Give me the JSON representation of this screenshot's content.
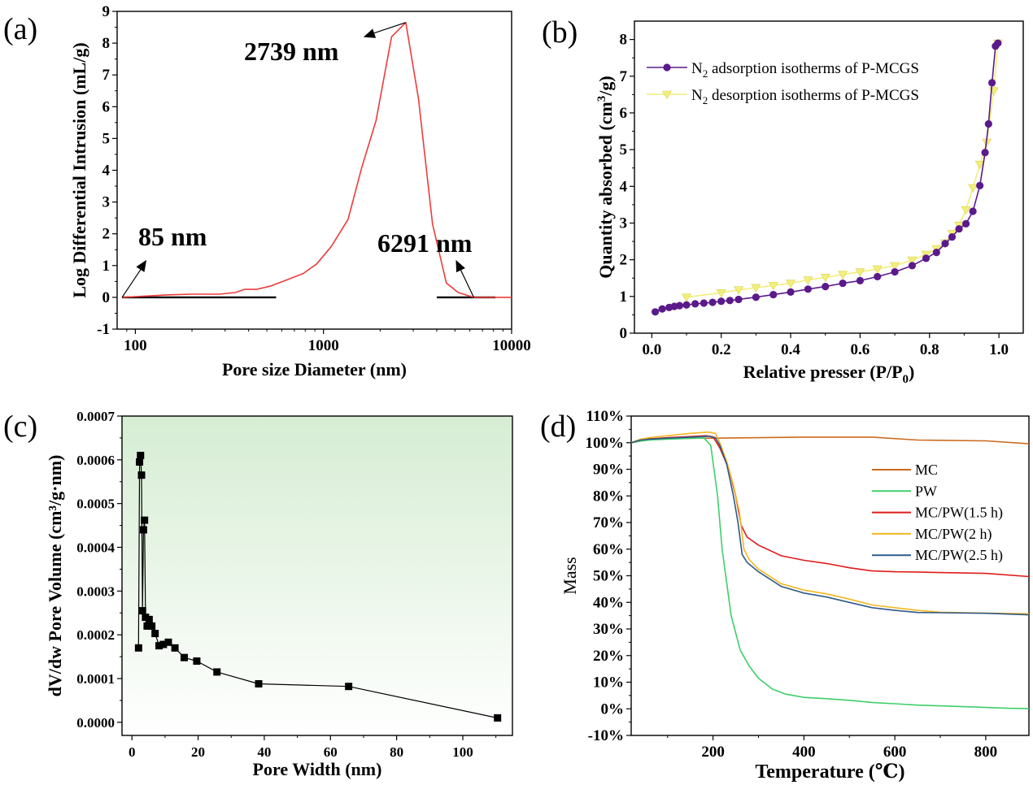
{
  "colors": {
    "a_line": "#ee3b3b",
    "b_ads": "#5b1a8a",
    "b_des": "#f2ee7a",
    "c_bg_top": "#d6edd3",
    "c_bg_bottom": "#ffffff",
    "d_mc": "#cc6a1e",
    "d_pw": "#3ecf6a",
    "d_mcpw15": "#e01b1b",
    "d_mcpw2": "#f5b621",
    "d_mcpw25": "#2f5a8a"
  },
  "chart_data": [
    {
      "id": "a",
      "panel_label": "(a)",
      "type": "line",
      "title": "",
      "xlabel": "Pore size Diameter (nm)",
      "ylabel": "Log Differential Intrusion (mL/g)",
      "xscale": "log",
      "xlim": [
        80,
        10000
      ],
      "ylim": [
        -1,
        9
      ],
      "xticks": [
        100,
        1000,
        10000
      ],
      "xtick_labels": [
        "100",
        "1000",
        "10000"
      ],
      "yticks": [
        -1,
        0,
        1,
        2,
        3,
        4,
        5,
        6,
        7,
        8,
        9
      ],
      "ytick_labels": [
        "-1",
        "0",
        "1",
        "2",
        "3",
        "4",
        "5",
        "6",
        "7",
        "8",
        "9"
      ],
      "series": [
        {
          "name": "Log Differential Intrusion",
          "x": [
            85,
            100,
            150,
            200,
            280,
            340,
            380,
            440,
            520,
            640,
            780,
            920,
            1100,
            1350,
            1600,
            1900,
            2300,
            2739,
            3200,
            3800,
            4500,
            5200,
            6291,
            8000,
            10000
          ],
          "y": [
            0.0,
            0.02,
            0.08,
            0.1,
            0.1,
            0.15,
            0.25,
            0.25,
            0.35,
            0.55,
            0.75,
            1.05,
            1.6,
            2.45,
            4.1,
            5.55,
            8.2,
            8.65,
            6.25,
            2.3,
            0.45,
            0.15,
            0.0,
            0.0,
            0.0
          ]
        }
      ],
      "baselines": [
        {
          "x": [
            85,
            560
          ],
          "y": 0
        },
        {
          "x": [
            4000,
            8200
          ],
          "y": 0
        }
      ],
      "annotations": [
        {
          "text": "85 nm",
          "x": 85,
          "y": 0
        },
        {
          "text": "2739 nm",
          "x": 2739,
          "y": 8.65
        },
        {
          "text": "6291 nm",
          "x": 6291,
          "y": 0
        }
      ]
    },
    {
      "id": "b",
      "panel_label": "(b)",
      "type": "line",
      "title": "",
      "xlabel": "Relative presser (P/P",
      "xlabel_sub": "0",
      "xlabel_end": ")",
      "ylabel": "Quantity absorbed (cm",
      "ylabel_sup": "3",
      "ylabel_end": "/g)",
      "xlim": [
        -0.05,
        1.07
      ],
      "ylim": [
        0,
        8.5
      ],
      "xticks": [
        0.0,
        0.2,
        0.4,
        0.6,
        0.8,
        1.0
      ],
      "xtick_labels": [
        "0.0",
        "0.2",
        "0.4",
        "0.6",
        "0.8",
        "1.0"
      ],
      "yticks": [
        0,
        1,
        2,
        3,
        4,
        5,
        6,
        7,
        8
      ],
      "ytick_labels": [
        "0",
        "1",
        "2",
        "3",
        "4",
        "5",
        "6",
        "7",
        "8"
      ],
      "legend_position": "top-left",
      "series": [
        {
          "name": "N",
          "name_sub": "2",
          "name_end": " adsorption isotherms of P-MCGS",
          "marker": "circle",
          "x": [
            0.01,
            0.03,
            0.05,
            0.065,
            0.08,
            0.1,
            0.125,
            0.15,
            0.175,
            0.2,
            0.225,
            0.25,
            0.3,
            0.35,
            0.4,
            0.45,
            0.5,
            0.55,
            0.6,
            0.65,
            0.7,
            0.75,
            0.79,
            0.82,
            0.845,
            0.865,
            0.885,
            0.905,
            0.925,
            0.945,
            0.96,
            0.97,
            0.98,
            0.99,
            0.997
          ],
          "y": [
            0.58,
            0.66,
            0.7,
            0.73,
            0.75,
            0.77,
            0.8,
            0.82,
            0.84,
            0.87,
            0.89,
            0.92,
            0.98,
            1.05,
            1.12,
            1.2,
            1.27,
            1.36,
            1.43,
            1.54,
            1.67,
            1.84,
            2.04,
            2.2,
            2.44,
            2.62,
            2.84,
            2.98,
            3.32,
            4.02,
            4.92,
            5.7,
            6.82,
            7.82,
            7.9
          ]
        },
        {
          "name": "N",
          "name_sub": "2",
          "name_end": " desorption isotherms of P-MCGS",
          "marker": "triangle-down",
          "x": [
            0.1,
            0.2,
            0.25,
            0.3,
            0.35,
            0.4,
            0.45,
            0.5,
            0.55,
            0.6,
            0.65,
            0.7,
            0.75,
            0.79,
            0.82,
            0.845,
            0.865,
            0.885,
            0.905,
            0.925,
            0.945,
            0.965,
            0.985,
            0.997
          ],
          "y": [
            0.98,
            1.1,
            1.18,
            1.24,
            1.3,
            1.36,
            1.45,
            1.52,
            1.6,
            1.67,
            1.75,
            1.84,
            1.99,
            2.15,
            2.3,
            2.46,
            2.72,
            2.94,
            3.36,
            3.96,
            4.6,
            5.2,
            6.6,
            7.9
          ]
        }
      ]
    },
    {
      "id": "c",
      "panel_label": "(c)",
      "type": "line",
      "title": "",
      "xlabel": "Pore Width (nm)",
      "ylabel": "dV/dw Pore Volume (cm³/g·nm)",
      "xlim": [
        -3,
        115
      ],
      "ylim": [
        -3e-05,
        0.0007
      ],
      "xticks": [
        0,
        20,
        40,
        60,
        80,
        100
      ],
      "xtick_labels": [
        "0",
        "20",
        "40",
        "60",
        "80",
        "100"
      ],
      "yticks": [
        0.0,
        0.0001,
        0.0002,
        0.0003,
        0.0004,
        0.0005,
        0.0006,
        0.0007
      ],
      "ytick_labels": [
        "0.0000",
        "0.0001",
        "0.0002",
        "0.0003",
        "0.0004",
        "0.0005",
        "0.0006",
        "0.0007"
      ],
      "background": "gradient",
      "series": [
        {
          "name": "dV/dw Pore Volume",
          "marker": "square",
          "x": [
            2.0,
            2.3,
            2.6,
            2.9,
            3.2,
            3.5,
            3.8,
            4.1,
            4.6,
            5.2,
            6.0,
            7.0,
            8.2,
            9.5,
            11.0,
            13.0,
            15.8,
            19.6,
            25.7,
            38.3,
            65.5,
            110.5
          ],
          "y": [
            0.00017,
            0.000595,
            0.00061,
            0.000565,
            0.000255,
            0.00044,
            0.000462,
            0.00024,
            0.00022,
            0.000235,
            0.00022,
            0.000203,
            0.000175,
            0.000178,
            0.000183,
            0.00017,
            0.000148,
            0.00014,
            0.000115,
            8.8e-05,
            8.2e-05,
            1e-05
          ]
        }
      ]
    },
    {
      "id": "d",
      "panel_label": "(d)",
      "type": "line",
      "title": "",
      "xlabel": "Temperature (℃)",
      "ylabel": "Mass",
      "xlim": [
        20,
        895
      ],
      "ylim": [
        -10,
        110
      ],
      "xticks": [
        200,
        400,
        600,
        800
      ],
      "xtick_labels": [
        "200",
        "400",
        "600",
        "800"
      ],
      "yticks": [
        -10,
        0,
        10,
        20,
        30,
        40,
        50,
        60,
        70,
        80,
        90,
        100,
        110
      ],
      "ytick_labels": [
        "-10%",
        "0%",
        "10%",
        "20%",
        "30%",
        "40%",
        "50%",
        "60%",
        "70%",
        "80%",
        "90%",
        "100%",
        "110%"
      ],
      "legend_position": "right",
      "series": [
        {
          "name": "MC",
          "x": [
            20,
            40,
            60,
            100,
            200,
            400,
            550,
            650,
            800,
            895
          ],
          "y": [
            100,
            101,
            101.5,
            101.6,
            101.7,
            102.1,
            102.1,
            101,
            100.7,
            99.6
          ]
        },
        {
          "name": "PW",
          "x": [
            20,
            40,
            60,
            100,
            150,
            180,
            195,
            210,
            220,
            240,
            260,
            280,
            300,
            330,
            360,
            400,
            450,
            500,
            550,
            600,
            650,
            700,
            750,
            800,
            850,
            895
          ],
          "y": [
            100,
            100.6,
            101,
            101.3,
            101.6,
            101.8,
            99,
            80,
            60,
            35,
            22,
            16,
            11.5,
            7.5,
            5.5,
            4.3,
            3.8,
            3.2,
            2.4,
            1.9,
            1.4,
            1.1,
            0.8,
            0.5,
            0.2,
            0.1
          ]
        },
        {
          "name": "MC/PW(1.5 h)",
          "x": [
            20,
            40,
            60,
            100,
            150,
            185,
            200,
            215,
            235,
            250,
            262,
            275,
            300,
            350,
            400,
            450,
            500,
            550,
            600,
            650,
            700,
            800,
            895
          ],
          "y": [
            100,
            101,
            101.4,
            101.9,
            102.3,
            102.6,
            102.2,
            98,
            90,
            80,
            69,
            64.5,
            61.5,
            57.5,
            55.8,
            54.6,
            53,
            51.8,
            51.5,
            51.4,
            51.2,
            50.9,
            49.7
          ]
        },
        {
          "name": "MC/PW(2 h)",
          "x": [
            20,
            40,
            60,
            100,
            150,
            190,
            205,
            215,
            230,
            245,
            258,
            268,
            280,
            300,
            350,
            400,
            450,
            500,
            550,
            600,
            650,
            700,
            800,
            895
          ],
          "y": [
            100,
            101.3,
            101.9,
            102.6,
            103.5,
            104,
            103.5,
            100,
            93,
            84,
            74,
            60,
            56,
            52.5,
            47,
            44.6,
            43.2,
            41.2,
            39,
            38,
            37,
            36.3,
            36,
            35.7
          ]
        },
        {
          "name": "MC/PW(2.5 h)",
          "x": [
            20,
            40,
            60,
            100,
            150,
            190,
            205,
            215,
            230,
            245,
            255,
            264,
            275,
            300,
            350,
            400,
            450,
            500,
            550,
            600,
            650,
            700,
            800,
            895
          ],
          "y": [
            100,
            101,
            101.3,
            101.7,
            102.1,
            102.4,
            101.9,
            99,
            92,
            80,
            70,
            58,
            55,
            51.5,
            46,
            43.5,
            42,
            40,
            38,
            37,
            36.2,
            36.1,
            35.9,
            35.3
          ]
        }
      ]
    }
  ]
}
